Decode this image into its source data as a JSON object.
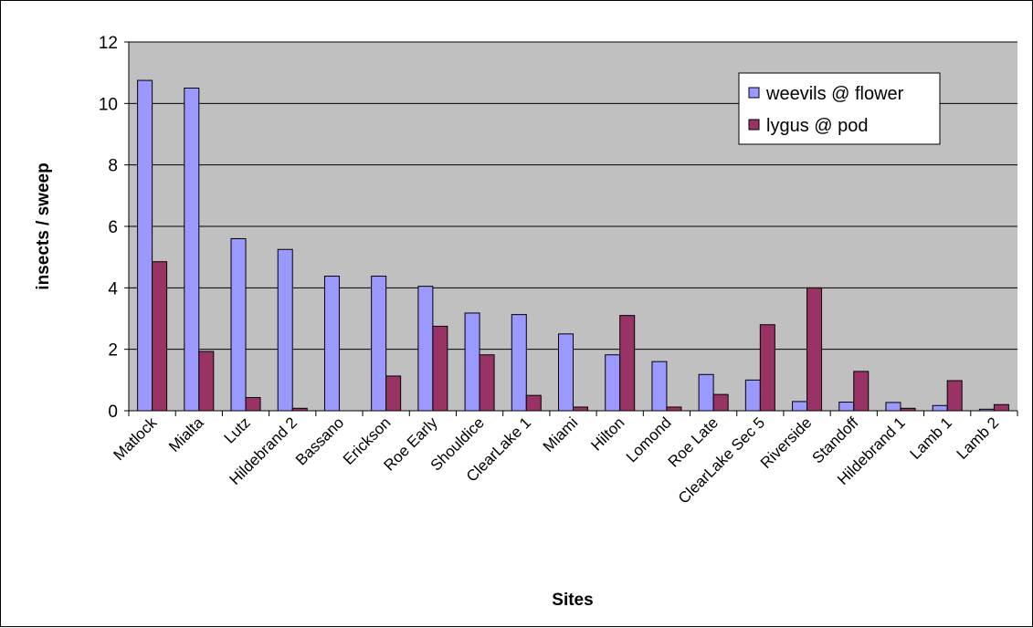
{
  "chart_data": {
    "type": "bar",
    "title": "",
    "xlabel": "Sites",
    "ylabel": "insects / sweep",
    "ylim": [
      0,
      12
    ],
    "yticks": [
      0,
      2,
      4,
      6,
      8,
      10,
      12
    ],
    "grid": true,
    "legend_position": "top-right",
    "plot_background": "#c0c0c0",
    "categories": [
      "Matlock",
      "Mialta",
      "Lutz",
      "Hildebrand 2",
      "Bassano",
      "Erickson",
      "Roe Early",
      "Shouldice",
      "ClearLake 1",
      "Miami",
      "Hilton",
      "Lomond",
      "Roe Late",
      "ClearLake Sec 5",
      "Riverside",
      "Standoff",
      "Hildebrand 1",
      "Lamb 1",
      "Lamb 2"
    ],
    "series": [
      {
        "name": "weevils @ flower",
        "color": "#9999ff",
        "values": [
          10.75,
          10.5,
          5.6,
          5.25,
          4.38,
          4.38,
          4.05,
          3.18,
          3.13,
          2.5,
          1.82,
          1.6,
          1.18,
          1.0,
          0.3,
          0.28,
          0.27,
          0.17,
          0.05
        ]
      },
      {
        "name": "lygus @ pod",
        "color": "#993366",
        "values": [
          4.85,
          1.93,
          0.43,
          0.08,
          0.0,
          1.13,
          2.75,
          1.82,
          0.5,
          0.12,
          3.1,
          0.12,
          0.53,
          2.8,
          4.0,
          1.28,
          0.08,
          0.98,
          0.2
        ]
      }
    ]
  }
}
